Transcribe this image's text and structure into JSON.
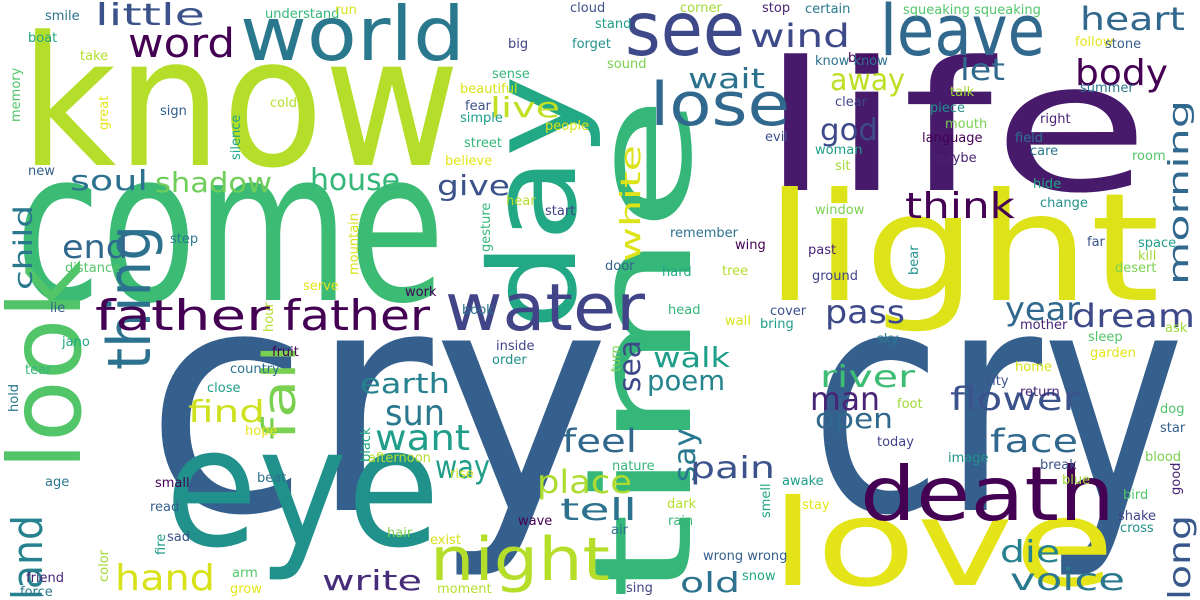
{
  "words": [
    "cry",
    "cry",
    "time",
    "know",
    "come",
    "life",
    "light",
    "day",
    "eye",
    "love",
    "death",
    "look",
    "world",
    "see",
    "leave",
    "water",
    "lose",
    "thing",
    "father",
    "father",
    "night",
    "word",
    "little",
    "shadow",
    "soul",
    "house",
    "end",
    "child",
    "land",
    "hand",
    "write",
    "find",
    "fall",
    "sun",
    "earth",
    "want",
    "way",
    "give",
    "live",
    "wind",
    "heart",
    "body",
    "let",
    "away",
    "wait",
    "god",
    "think",
    "morning",
    "white",
    "pass",
    "year",
    "dream",
    "walk",
    "poem",
    "sea",
    "river",
    "man",
    "open",
    "flower",
    "face",
    "long",
    "feel",
    "say",
    "pain",
    "place",
    "tell",
    "die",
    "voice",
    "old",
    "smile",
    "understand",
    "run",
    "cloud",
    "stand",
    "corner",
    "stop",
    "certain",
    "squeaking squeaking",
    "follow",
    "stone",
    "boat",
    "take",
    "big",
    "forget",
    "sound",
    "burn",
    "know know",
    "sense",
    "beautiful",
    "fear",
    "simple",
    "talk",
    "right",
    "summer",
    "memory",
    "great",
    "sign",
    "silence",
    "cold",
    "clear",
    "piece",
    "mouth",
    "language",
    "field",
    "street",
    "people",
    "evil",
    "woman",
    "sit",
    "maybe",
    "care",
    "room",
    "believe",
    "new",
    "hide",
    "hear",
    "start",
    "change",
    "window",
    "wing",
    "remember",
    "gesture",
    "mountain",
    "far",
    "space",
    "kill",
    "past",
    "step",
    "distance",
    "serve",
    "door",
    "hard",
    "tree",
    "ground",
    "bear",
    "desert",
    "work",
    "book",
    "head",
    "wall",
    "cover",
    "bring",
    "ask",
    "mother",
    "sky",
    "sleep",
    "garden",
    "lie",
    "jano",
    "hour",
    "inside",
    "order",
    "turn",
    "fruit",
    "country",
    "tear",
    "home",
    "city",
    "close",
    "foot",
    "return",
    "hold",
    "dog",
    "hope",
    "star",
    "black",
    "afternoon",
    "today",
    "image",
    "blood",
    "small",
    "beat",
    "nature",
    "rise",
    "break",
    "awake",
    "blue",
    "good",
    "age",
    "bird",
    "stay",
    "read",
    "smell",
    "dark",
    "shake",
    "cross",
    "hair",
    "wave",
    "air",
    "rain",
    "exist",
    "sad",
    "fire",
    "color",
    "friend",
    "force",
    "arm",
    "grow",
    "wrong wrong",
    "snow",
    "moment",
    "sing"
  ]
}
